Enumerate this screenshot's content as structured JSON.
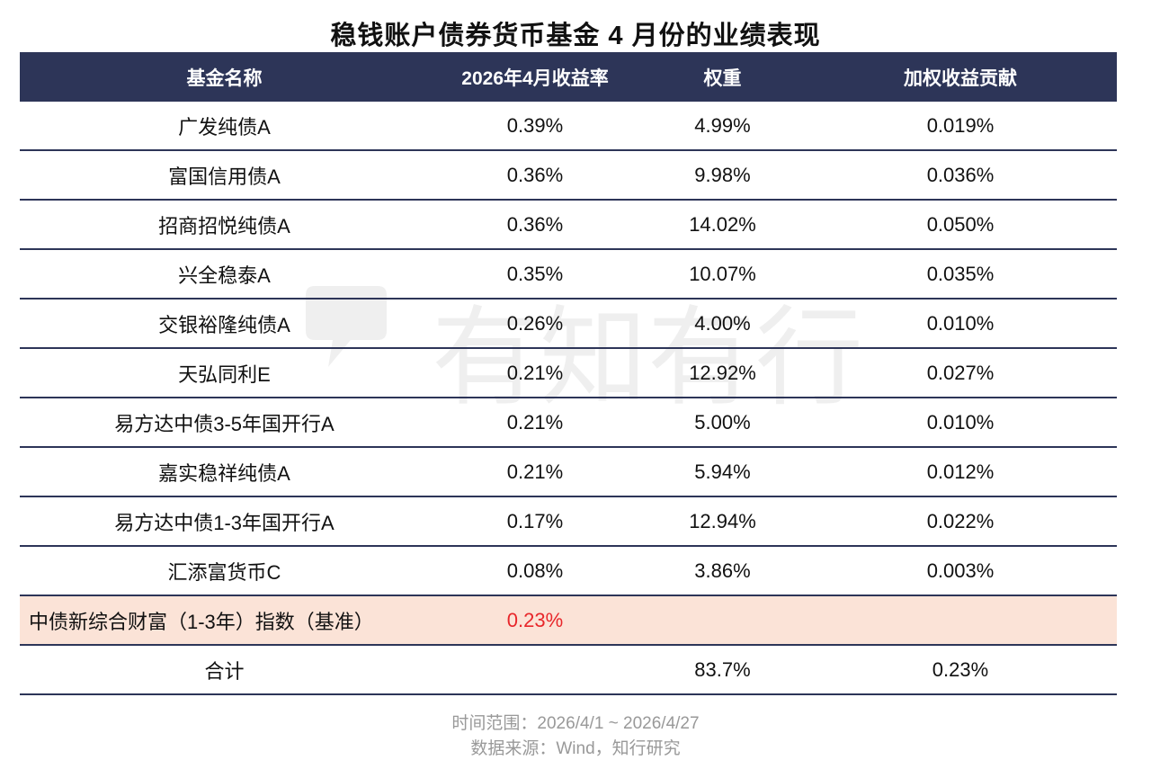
{
  "title": "稳钱账户债券货币基金 4 月份的业绩表现",
  "watermark": {
    "text": "有知有行"
  },
  "table": {
    "headers": [
      "基金名称",
      "2026年4月收益率",
      "权重",
      "加权收益贡献"
    ],
    "rows": [
      {
        "name": "广发纯债A",
        "return": "0.39%",
        "weight": "4.99%",
        "contribution": "0.019%"
      },
      {
        "name": "富国信用债A",
        "return": "0.36%",
        "weight": "9.98%",
        "contribution": "0.036%"
      },
      {
        "name": "招商招悦纯债A",
        "return": "0.36%",
        "weight": "14.02%",
        "contribution": "0.050%"
      },
      {
        "name": "兴全稳泰A",
        "return": "0.35%",
        "weight": "10.07%",
        "contribution": "0.035%"
      },
      {
        "name": "交银裕隆纯债A",
        "return": "0.26%",
        "weight": "4.00%",
        "contribution": "0.010%"
      },
      {
        "name": "天弘同利E",
        "return": "0.21%",
        "weight": "12.92%",
        "contribution": "0.027%"
      },
      {
        "name": "易方达中债3-5年国开行A",
        "return": "0.21%",
        "weight": "5.00%",
        "contribution": "0.010%"
      },
      {
        "name": "嘉实稳祥纯债A",
        "return": "0.21%",
        "weight": "5.94%",
        "contribution": "0.012%"
      },
      {
        "name": "易方达中债1-3年国开行A",
        "return": "0.17%",
        "weight": "12.94%",
        "contribution": "0.022%"
      },
      {
        "name": "汇添富货币C",
        "return": "0.08%",
        "weight": "3.86%",
        "contribution": "0.003%"
      }
    ],
    "benchmark": {
      "name": "中债新综合财富（1-3年）指数（基准）",
      "return": "0.23%",
      "weight": "",
      "contribution": ""
    },
    "total": {
      "name": "合计",
      "return": "",
      "weight": "83.7%",
      "contribution": "0.23%"
    }
  },
  "footer": {
    "time_range": "时间范围：2026/4/1 ~ 2026/4/27",
    "source": "数据来源：Wind，知行研究"
  },
  "colors": {
    "header_bg": "#2d3558",
    "benchmark_bg": "#fbe3d7",
    "benchmark_return": "#e8262a",
    "footer_text": "#999999"
  }
}
